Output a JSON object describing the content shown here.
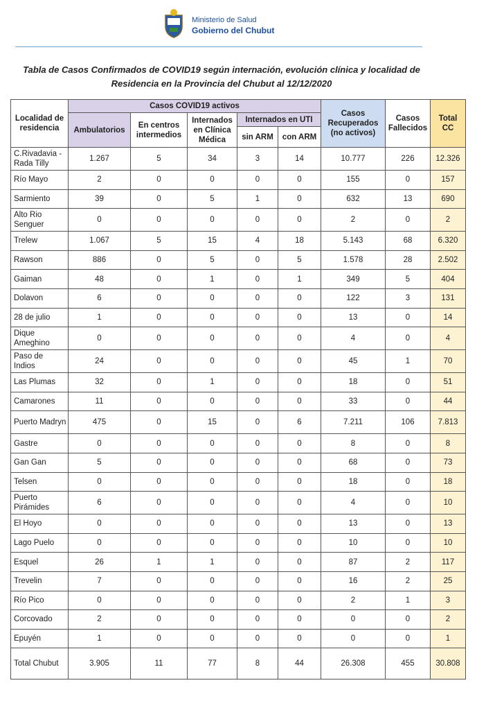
{
  "header": {
    "ministry": "Ministerio de Salud",
    "government": "Gobierno del Chubut"
  },
  "title": "Tabla de Casos Confirmados de COVID19 según internación, evolución clínica y localidad de Residencia en la Provincia del Chubut al 12/12/2020",
  "table": {
    "columns": {
      "locality": "Localidad de residencia",
      "active": "Casos COVID19 activos",
      "ambulatory": "Ambulatorios",
      "centers": "En centros intermedios",
      "clinic": "Internados en Clínica Médica",
      "icu": "Internados en UTI",
      "no_arm": "sin ARM",
      "arm": "con ARM",
      "recovered": "Casos Recuperados (no activos)",
      "deceased": "Casos Fallecidos",
      "total": "Total CC"
    },
    "rows": [
      [
        "C.Rivadavia - Rada Tilly",
        "1.267",
        "5",
        "34",
        "3",
        "14",
        "10.777",
        "226",
        "12.326"
      ],
      [
        "Río Mayo",
        "2",
        "0",
        "0",
        "0",
        "0",
        "155",
        "0",
        "157"
      ],
      [
        "Sarmiento",
        "39",
        "0",
        "5",
        "1",
        "0",
        "632",
        "13",
        "690"
      ],
      [
        "Alto Rio Senguer",
        "0",
        "0",
        "0",
        "0",
        "0",
        "2",
        "0",
        "2"
      ],
      [
        "Trelew",
        "1.067",
        "5",
        "15",
        "4",
        "18",
        "5.143",
        "68",
        "6.320"
      ],
      [
        "Rawson",
        "886",
        "0",
        "5",
        "0",
        "5",
        "1.578",
        "28",
        "2.502"
      ],
      [
        "Gaiman",
        "48",
        "0",
        "1",
        "0",
        "1",
        "349",
        "5",
        "404"
      ],
      [
        "Dolavon",
        "6",
        "0",
        "0",
        "0",
        "0",
        "122",
        "3",
        "131"
      ],
      [
        "28 de julio",
        "1",
        "0",
        "0",
        "0",
        "0",
        "13",
        "0",
        "14"
      ],
      [
        "Dique Ameghino",
        "0",
        "0",
        "0",
        "0",
        "0",
        "4",
        "0",
        "4"
      ],
      [
        "Paso de Indios",
        "24",
        "0",
        "0",
        "0",
        "0",
        "45",
        "1",
        "70"
      ],
      [
        "Las Plumas",
        "32",
        "0",
        "1",
        "0",
        "0",
        "18",
        "0",
        "51"
      ],
      [
        "Camarones",
        "11",
        "0",
        "0",
        "0",
        "0",
        "33",
        "0",
        "44"
      ],
      [
        "Puerto Madryn",
        "475",
        "0",
        "15",
        "0",
        "6",
        "7.211",
        "106",
        "7.813"
      ],
      [
        "Gastre",
        "0",
        "0",
        "0",
        "0",
        "0",
        "8",
        "0",
        "8"
      ],
      [
        "Gan Gan",
        "5",
        "0",
        "0",
        "0",
        "0",
        "68",
        "0",
        "73"
      ],
      [
        "Telsen",
        "0",
        "0",
        "0",
        "0",
        "0",
        "18",
        "0",
        "18"
      ],
      [
        "Puerto Pirámides",
        "6",
        "0",
        "0",
        "0",
        "0",
        "4",
        "0",
        "10"
      ],
      [
        "El Hoyo",
        "0",
        "0",
        "0",
        "0",
        "0",
        "13",
        "0",
        "13"
      ],
      [
        "Lago Puelo",
        "0",
        "0",
        "0",
        "0",
        "0",
        "10",
        "0",
        "10"
      ],
      [
        "Esquel",
        "26",
        "1",
        "1",
        "0",
        "0",
        "87",
        "2",
        "117"
      ],
      [
        "Trevelin",
        "7",
        "0",
        "0",
        "0",
        "0",
        "16",
        "2",
        "25"
      ],
      [
        "Río Pico",
        "0",
        "0",
        "0",
        "0",
        "0",
        "2",
        "1",
        "3"
      ],
      [
        "Corcovado",
        "2",
        "0",
        "0",
        "0",
        "0",
        "0",
        "0",
        "2"
      ],
      [
        "Epuyén",
        "1",
        "0",
        "0",
        "0",
        "0",
        "0",
        "0",
        "1"
      ]
    ],
    "total": [
      "Total Chubut",
      "3.905",
      "11",
      "77",
      "8",
      "44",
      "26.308",
      "455",
      "30.808"
    ]
  }
}
